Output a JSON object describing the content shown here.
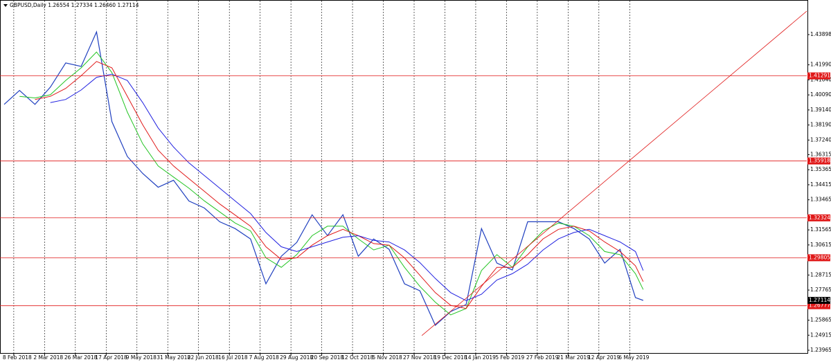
{
  "chart_data": {
    "type": "line",
    "header": "GBPUSD,Daily  1.26554 1.27334 1.26460 1.27114",
    "x": [
      0,
      8,
      16,
      24,
      32,
      40,
      48,
      56,
      64,
      72,
      80,
      88,
      96,
      104,
      112,
      120,
      128,
      136,
      144,
      152,
      160,
      168,
      176,
      184,
      192,
      200,
      208,
      216,
      224,
      232,
      240,
      248,
      256,
      264,
      272,
      280,
      288,
      296,
      304,
      312,
      320,
      328,
      332
    ],
    "series": [
      {
        "color": "#1f3fbf",
        "values": [
          1.3949,
          1.4037,
          1.3949,
          1.4058,
          1.4211,
          1.4189,
          1.4407,
          1.384,
          1.362,
          1.3513,
          1.3426,
          1.347,
          1.3339,
          1.3295,
          1.3208,
          1.3165,
          1.3099,
          1.2816,
          1.299,
          1.3077,
          1.3252,
          1.3121,
          1.3252,
          1.299,
          1.3099,
          1.3034,
          1.2816,
          1.2772,
          1.2554,
          1.2641,
          1.2685,
          1.3165,
          1.2947,
          1.2903,
          1.3208,
          1.3208,
          1.3208,
          1.3165,
          1.3099,
          1.2947,
          1.3034,
          1.2729,
          1.27114
        ]
      },
      {
        "color": "#22c422",
        "values": [
          null,
          1.4,
          1.399,
          1.401,
          1.41,
          1.418,
          1.428,
          1.415,
          1.39,
          1.37,
          1.356,
          1.349,
          1.342,
          1.334,
          1.327,
          1.32,
          1.315,
          1.298,
          1.292,
          1.3,
          1.312,
          1.318,
          1.318,
          1.31,
          1.303,
          1.306,
          1.292,
          1.28,
          1.27,
          1.262,
          1.266,
          1.29,
          1.3,
          1.292,
          1.305,
          1.315,
          1.32,
          1.318,
          1.312,
          1.302,
          1.3,
          1.288,
          1.278
        ]
      },
      {
        "color": "#e01818",
        "values": [
          null,
          null,
          1.398,
          1.4,
          1.405,
          1.413,
          1.422,
          1.418,
          1.4,
          1.382,
          1.366,
          1.356,
          1.348,
          1.34,
          1.332,
          1.325,
          1.318,
          1.305,
          1.297,
          1.298,
          1.306,
          1.312,
          1.316,
          1.312,
          1.307,
          1.306,
          1.298,
          1.287,
          1.276,
          1.268,
          1.266,
          1.28,
          1.292,
          1.292,
          1.3,
          1.31,
          1.316,
          1.318,
          1.315,
          1.308,
          1.302,
          1.293,
          1.283
        ]
      },
      {
        "color": "#2020e0",
        "values": [
          null,
          null,
          null,
          1.396,
          1.398,
          1.404,
          1.412,
          1.414,
          1.41,
          1.396,
          1.38,
          1.368,
          1.358,
          1.35,
          1.342,
          1.334,
          1.326,
          1.314,
          1.305,
          1.302,
          1.305,
          1.308,
          1.311,
          1.312,
          1.309,
          1.308,
          1.303,
          1.295,
          1.285,
          1.276,
          1.271,
          1.275,
          1.284,
          1.288,
          1.294,
          1.303,
          1.31,
          1.314,
          1.316,
          1.312,
          1.308,
          1.302,
          1.29
        ]
      }
    ],
    "levels": [
      1.41291,
      1.35918,
      1.32324,
      1.29805,
      1.26777
    ],
    "level_color": "#e01818",
    "current": 1.27114,
    "trend_line": {
      "x": [
        217,
        417
      ],
      "values": [
        1.2489,
        1.4538
      ]
    },
    "xlim": [
      0,
      417
    ],
    "xticks": [
      {
        "value": 5,
        "label": "8 Feb 2018"
      },
      {
        "value": 21,
        "label": "2 Mar 2018"
      },
      {
        "value": 37,
        "label": "26 Mar 2018"
      },
      {
        "value": 53,
        "label": "17 Apr 2018"
      },
      {
        "value": 69,
        "label": "9 May 2018"
      },
      {
        "value": 85,
        "label": "31 May 2018"
      },
      {
        "value": 101,
        "label": "22 Jun 2018"
      },
      {
        "value": 117,
        "label": "16 Jul 2018"
      },
      {
        "value": 133,
        "label": "7 Aug 2018"
      },
      {
        "value": 149,
        "label": "29 Aug 2018"
      },
      {
        "value": 165,
        "label": "20 Sep 2018"
      },
      {
        "value": 181,
        "label": "12 Oct 2018"
      },
      {
        "value": 197,
        "label": "5 Nov 2018"
      },
      {
        "value": 213,
        "label": "27 Nov 2018"
      },
      {
        "value": 229,
        "label": "19 Dec 2018"
      },
      {
        "value": 245,
        "label": "14 Jan 2019"
      },
      {
        "value": 261,
        "label": "5 Feb 2019"
      },
      {
        "value": 277,
        "label": "27 Feb 2019"
      },
      {
        "value": 293,
        "label": "21 Mar 2019"
      },
      {
        "value": 309,
        "label": "12 Apr 2019"
      },
      {
        "value": 325,
        "label": "6 May 2019"
      }
    ],
    "ylim": [
      1.2379,
      1.4604
    ],
    "yticks": [
      1.43898,
      {
        "value": 1.4199,
        "label": "1.41990"
      },
      {
        "value": 1.4104,
        "label": "1.41040"
      },
      {
        "value": 1.4009,
        "label": "1.40090"
      },
      {
        "value": 1.3914,
        "label": "1.39140"
      },
      {
        "value": 1.3819,
        "label": "1.38190"
      },
      {
        "value": 1.3724,
        "label": "1.37240"
      },
      1.36315,
      1.35365,
      1.34415,
      1.33465,
      1.31565,
      1.30615,
      1.28715,
      1.27765,
      1.25865,
      1.24915,
      1.23965
    ],
    "grid": true
  }
}
